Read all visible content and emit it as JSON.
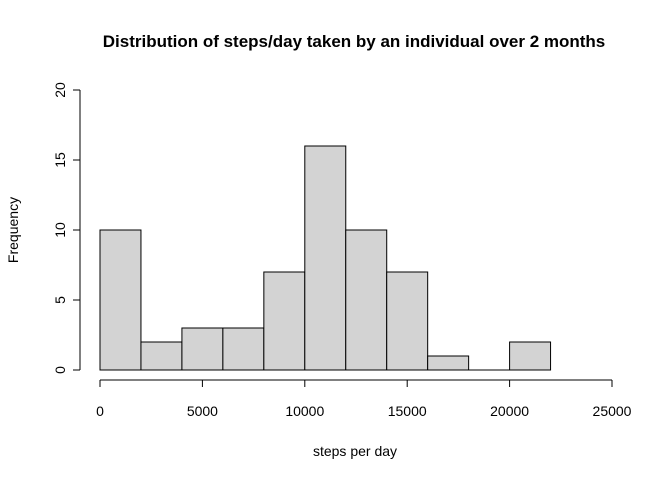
{
  "chart_data": {
    "type": "bar",
    "title": "Distribution of steps/day taken by an individual over 2 months",
    "xlabel": "steps per day",
    "ylabel": "Frequency",
    "bin_edges": [
      0,
      2000,
      4000,
      6000,
      8000,
      10000,
      12000,
      14000,
      16000,
      18000,
      20000,
      22000
    ],
    "values": [
      10,
      2,
      3,
      3,
      7,
      16,
      10,
      7,
      1,
      0,
      2
    ],
    "xlim": [
      0,
      25000
    ],
    "ylim": [
      0,
      20
    ],
    "xticks": [
      0,
      5000,
      10000,
      15000,
      20000,
      25000
    ],
    "xtick_labels": [
      "0",
      "5000",
      "10000",
      "15000",
      "20000",
      "25000"
    ],
    "yticks": [
      0,
      5,
      10,
      15,
      20
    ],
    "ytick_labels": [
      "0",
      "5",
      "10",
      "15",
      "20"
    ],
    "bar_color": "#d3d3d3",
    "grid": false
  }
}
